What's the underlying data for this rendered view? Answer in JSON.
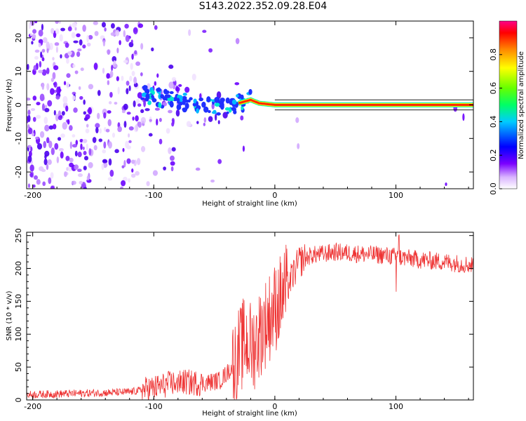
{
  "title": "S143.2022.352.09.28.E04",
  "chart_data": [
    {
      "type": "heatmap",
      "xlabel": "Height of straight line (km)",
      "ylabel": "Frequency (Hz)",
      "xlim": [
        -205,
        164
      ],
      "ylim": [
        -25,
        25
      ],
      "xticks": [
        "-200",
        "-100",
        "0",
        "100"
      ],
      "yticks": [
        "-20",
        "-10",
        "0",
        "10",
        "20"
      ],
      "colorbar": {
        "label": "Normalized spectral amplitude",
        "ticks": [
          "0.0",
          "0.2",
          "0.4",
          "0.6",
          "0.8"
        ],
        "range": [
          0,
          1
        ]
      },
      "ridge": {
        "description_points": [
          [
            -110,
            3
          ],
          [
            -80,
            1
          ],
          [
            -45,
            -1
          ],
          [
            -30,
            0.5
          ],
          [
            -20,
            1.5
          ],
          [
            -13,
            0.5
          ],
          [
            0,
            0
          ],
          [
            160,
            0
          ]
        ],
        "peak_amplitude": 0.95
      }
    },
    {
      "type": "line",
      "xlabel": "Height of straight line (km)",
      "ylabel": "SNR (10 * v/v)",
      "xlim": [
        -205,
        164
      ],
      "ylim": [
        0,
        255
      ],
      "xticks": [
        "-200",
        "-100",
        "0",
        "100"
      ],
      "yticks": [
        "0",
        "50",
        "100",
        "150",
        "200",
        "250"
      ],
      "color": "#ee3333",
      "envelope": {
        "x": [
          -205,
          -160,
          -120,
          -100,
          -80,
          -60,
          -45,
          -35,
          -25,
          -18,
          -10,
          0,
          10,
          20,
          30,
          40,
          50,
          70,
          90,
          100,
          120,
          140,
          164
        ],
        "y": [
          8,
          10,
          12,
          18,
          28,
          25,
          30,
          50,
          90,
          80,
          110,
          140,
          170,
          210,
          220,
          222,
          225,
          222,
          220,
          218,
          213,
          210,
          205
        ]
      }
    }
  ]
}
